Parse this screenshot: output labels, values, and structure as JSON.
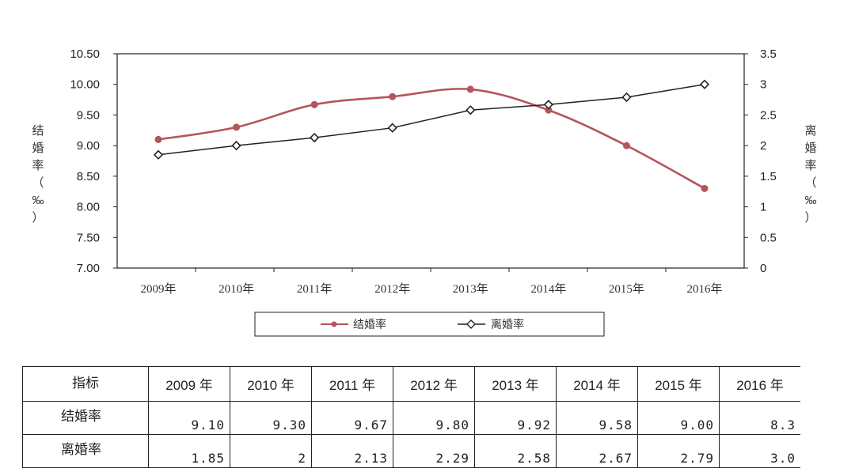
{
  "chart_data": {
    "type": "line",
    "categories": [
      "2009年",
      "2010年",
      "2011年",
      "2012年",
      "2013年",
      "2014年",
      "2015年",
      "2016年"
    ],
    "series": [
      {
        "name": "结婚率",
        "axis": "left",
        "color": "#b5545c",
        "marker": "circle",
        "values": [
          9.1,
          9.3,
          9.67,
          9.8,
          9.92,
          9.58,
          9.0,
          8.3
        ]
      },
      {
        "name": "离婚率",
        "axis": "right",
        "color": "#222222",
        "marker": "diamond",
        "values": [
          1.85,
          2.0,
          2.13,
          2.29,
          2.58,
          2.67,
          2.79,
          3.0
        ]
      }
    ],
    "y_left": {
      "label": "结婚率（‰）",
      "min": 7.0,
      "max": 10.5,
      "step": 0.5,
      "ticks": [
        "7.00",
        "7.50",
        "8.00",
        "8.50",
        "9.00",
        "9.50",
        "10.00",
        "10.50"
      ]
    },
    "y_right": {
      "label": "离婚率（‰）",
      "min": 0,
      "max": 3.5,
      "step": 0.5,
      "ticks": [
        "0",
        "0.5",
        "1",
        "1.5",
        "2",
        "2.5",
        "3",
        "3.5"
      ]
    },
    "grid": false,
    "legend": "bottom"
  },
  "table": {
    "header_label": "指标",
    "years": [
      "2009 年",
      "2010 年",
      "2011 年",
      "2012 年",
      "2013 年",
      "2014 年",
      "2015 年",
      "2016 年"
    ],
    "rows": [
      {
        "label": "结婚率",
        "values": [
          "9.10",
          "9.30",
          "9.67",
          "9.80",
          "9.92",
          "9.58",
          "9.00",
          "8.3"
        ]
      },
      {
        "label": "离婚率",
        "values": [
          "1.85",
          "2",
          "2.13",
          "2.29",
          "2.58",
          "2.67",
          "2.79",
          "3.0"
        ]
      }
    ]
  }
}
